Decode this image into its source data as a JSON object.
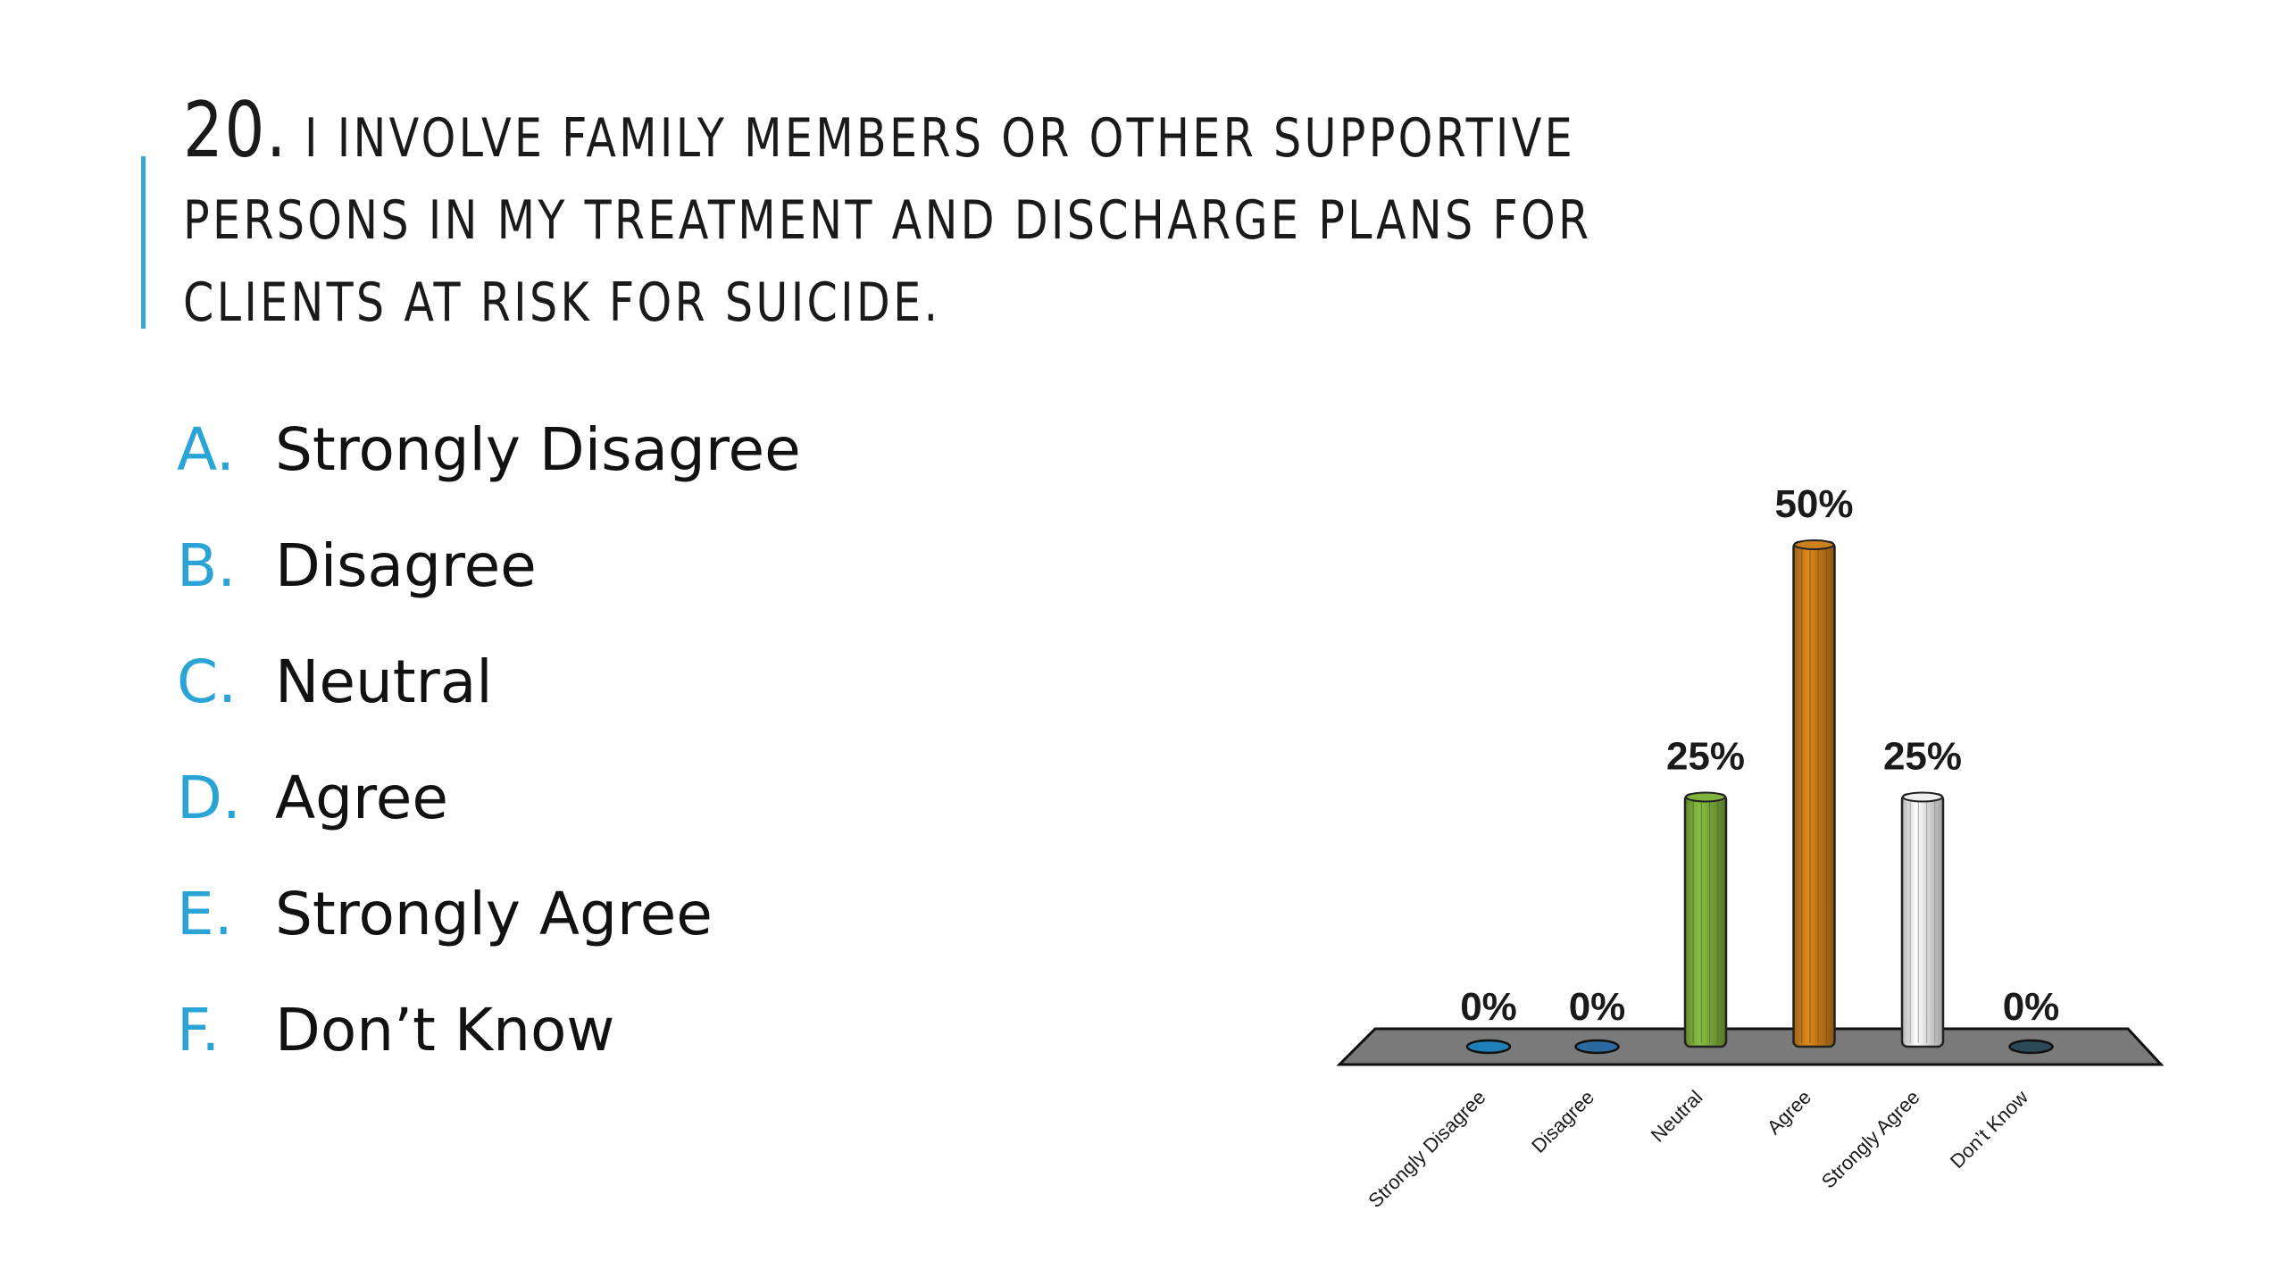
{
  "title": {
    "number": "20.",
    "text": "I INVOLVE FAMILY MEMBERS OR OTHER SUPPORTIVE PERSONS IN MY TREATMENT AND DISCHARGE PLANS FOR CLIENTS AT RISK FOR SUICIDE."
  },
  "options": [
    {
      "letter": "A.",
      "text": "Strongly Disagree"
    },
    {
      "letter": "B.",
      "text": "Disagree"
    },
    {
      "letter": "C.",
      "text": "Neutral"
    },
    {
      "letter": "D.",
      "text": "Agree"
    },
    {
      "letter": "E.",
      "text": "Strongly Agree"
    },
    {
      "letter": "F.",
      "text": "Don’t Know"
    }
  ],
  "colors": {
    "accent": "#2aa4d6",
    "floor": "#7a7a7a"
  },
  "chart_data": {
    "type": "bar",
    "categories": [
      "Strongly Disagree",
      "Disagree",
      "Neutral",
      "Agree",
      "Strongly Agree",
      "Don’t Know"
    ],
    "values": [
      0,
      0,
      25,
      50,
      25,
      0
    ],
    "value_labels": [
      "0%",
      "0%",
      "25%",
      "50%",
      "25%",
      "0%"
    ],
    "colors": [
      "#1f7fb8",
      "#2a6aa0",
      "#7aaa3a",
      "#c47a1a",
      "#e4e4e4",
      "#2a4a5a"
    ],
    "ylim": [
      0,
      50
    ],
    "grid": false,
    "legend": "none",
    "style": "3d-cylinder"
  }
}
